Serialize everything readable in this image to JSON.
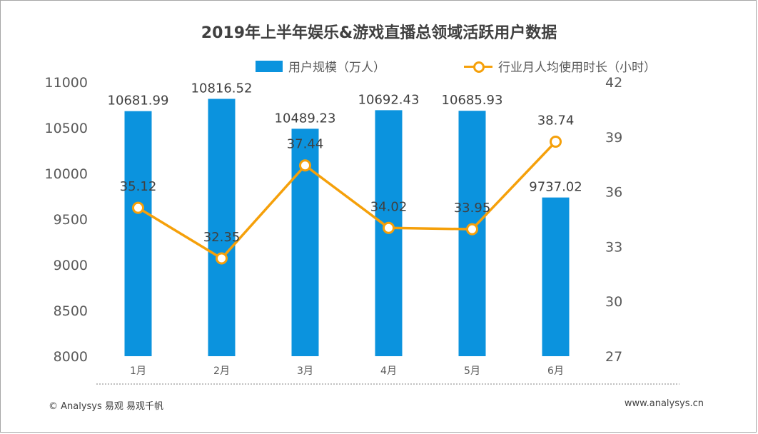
{
  "title": "2019年上半年娱乐&游戏直播总领域活跃用户数据",
  "footer": {
    "left": "© Analysys 易观 易观千帆",
    "right": "www.analysys.cn"
  },
  "colors": {
    "bar": "#0b93de",
    "line": "#f5a00a",
    "axis_text": "#595959"
  },
  "chart_data": {
    "type": "bar",
    "categories": [
      "1月",
      "2月",
      "3月",
      "4月",
      "5月",
      "6月"
    ],
    "series": [
      {
        "name": "用户规模（万人）",
        "type": "bar",
        "axis": "left",
        "values": [
          10681.99,
          10816.52,
          10489.23,
          10692.43,
          10685.93,
          9737.02
        ],
        "labels": [
          "10681.99",
          "10816.52",
          "10489.23",
          "10692.43",
          "10685.93",
          "9737.02"
        ]
      },
      {
        "name": "行业月人均使用时长（小时）",
        "type": "line",
        "axis": "right",
        "values": [
          35.12,
          32.35,
          37.44,
          34.02,
          33.95,
          38.74
        ],
        "labels": [
          "35.12",
          "32.35",
          "37.44",
          "34.02",
          "33.95",
          "38.74"
        ]
      }
    ],
    "y_left": {
      "min": 8000,
      "max": 11000,
      "ticks": [
        "8000",
        "8500",
        "9000",
        "9500",
        "10000",
        "10500",
        "11000"
      ]
    },
    "y_right": {
      "min": 27,
      "max": 42,
      "ticks": [
        "27",
        "30",
        "33",
        "36",
        "39",
        "42"
      ]
    },
    "legend_position": "top",
    "grid": false
  }
}
